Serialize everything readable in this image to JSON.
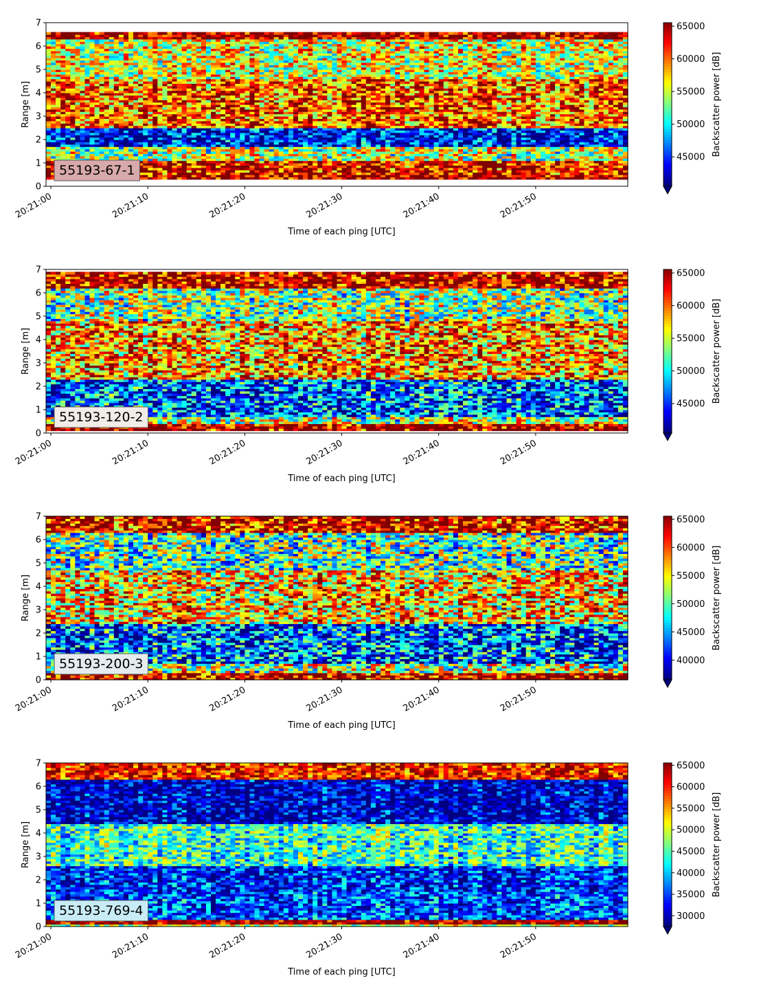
{
  "chart_data": [
    {
      "type": "heatmap",
      "label": "55193-67-1",
      "xlabel": "Time of each ping [UTC]",
      "ylabel": "Range [m]",
      "xticks": [
        "20:21:00",
        "20:21:10",
        "20:21:20",
        "20:21:30",
        "20:21:40",
        "20:21:50"
      ],
      "xlim_seconds": [
        -0.5,
        59.5
      ],
      "yticks": [
        "0",
        "1",
        "2",
        "3",
        "4",
        "5",
        "6",
        "7"
      ],
      "ylim": [
        0,
        7
      ],
      "colorbar_label": "Backscatter power [dB]",
      "colorbar_ticks": [
        "45000",
        "50000",
        "55000",
        "60000",
        "65000"
      ],
      "clim": [
        40500,
        65535
      ],
      "colormap": "jet",
      "colorbar_extend": "min",
      "label_box_color": "#d8a9aa",
      "profile": {
        "clip": [
          0.28,
          6.55
        ],
        "bands": [
          {
            "range": [
              0.28,
              0.55
            ],
            "level": 0.97
          },
          {
            "range": [
              0.55,
              1.1
            ],
            "level": 0.88
          },
          {
            "range": [
              1.1,
              1.7
            ],
            "level": 0.55
          },
          {
            "range": [
              1.7,
              2.5
            ],
            "level": 0.12
          },
          {
            "range": [
              2.5,
              4.6
            ],
            "level": 0.78
          },
          {
            "range": [
              4.6,
              6.3
            ],
            "level": 0.6
          },
          {
            "range": [
              6.3,
              7.0
            ],
            "level": 0.97
          }
        ],
        "noise": 0.28
      }
    },
    {
      "type": "heatmap",
      "label": "55193-120-2",
      "xlabel": "Time of each ping [UTC]",
      "ylabel": "Range [m]",
      "xticks": [
        "20:21:00",
        "20:21:10",
        "20:21:20",
        "20:21:30",
        "20:21:40",
        "20:21:50"
      ],
      "xlim_seconds": [
        -0.5,
        59.5
      ],
      "yticks": [
        "0",
        "1",
        "2",
        "3",
        "4",
        "5",
        "6",
        "7"
      ],
      "ylim": [
        0,
        7
      ],
      "colorbar_label": "Backscatter power [dB]",
      "colorbar_ticks": [
        "45000",
        "50000",
        "55000",
        "60000",
        "65000"
      ],
      "clim": [
        40500,
        65535
      ],
      "colormap": "jet",
      "colorbar_extend": "min",
      "label_box_color": "#f2ece8",
      "profile": {
        "clip": [
          0.12,
          6.9
        ],
        "bands": [
          {
            "range": [
              0.12,
              0.4
            ],
            "level": 0.97
          },
          {
            "range": [
              0.4,
              0.7
            ],
            "level": 0.55
          },
          {
            "range": [
              0.7,
              2.3
            ],
            "level": 0.22
          },
          {
            "range": [
              2.3,
              4.8
            ],
            "level": 0.72
          },
          {
            "range": [
              4.8,
              6.2
            ],
            "level": 0.5
          },
          {
            "range": [
              6.2,
              7.0
            ],
            "level": 0.95
          }
        ],
        "noise": 0.32
      }
    },
    {
      "type": "heatmap",
      "label": "55193-200-3",
      "xlabel": "Time of each ping [UTC]",
      "ylabel": "Range [m]",
      "xticks": [
        "20:21:00",
        "20:21:10",
        "20:21:20",
        "20:21:30",
        "20:21:40",
        "20:21:50"
      ],
      "xlim_seconds": [
        -0.5,
        59.5
      ],
      "yticks": [
        "0",
        "1",
        "2",
        "3",
        "4",
        "5",
        "6",
        "7"
      ],
      "ylim": [
        0,
        7
      ],
      "colorbar_label": "Backscatter power [dB]",
      "colorbar_ticks": [
        "40000",
        "45000",
        "50000",
        "55000",
        "60000",
        "65000"
      ],
      "clim": [
        36500,
        65535
      ],
      "colormap": "jet",
      "colorbar_extend": "min",
      "label_box_color": "#e4ecef",
      "profile": {
        "clip": [
          0.0,
          7.0
        ],
        "bands": [
          {
            "range": [
              0.0,
              0.3
            ],
            "level": 0.97
          },
          {
            "range": [
              0.3,
              0.7
            ],
            "level": 0.55
          },
          {
            "range": [
              0.7,
              2.4
            ],
            "level": 0.22
          },
          {
            "range": [
              2.4,
              4.7
            ],
            "level": 0.66
          },
          {
            "range": [
              4.7,
              6.3
            ],
            "level": 0.45
          },
          {
            "range": [
              6.3,
              7.0
            ],
            "level": 0.92
          }
        ],
        "noise": 0.34
      }
    },
    {
      "type": "heatmap",
      "label": "55193-769-4",
      "xlabel": "Time of each ping [UTC]",
      "ylabel": "Range [m]",
      "xticks": [
        "20:21:00",
        "20:21:10",
        "20:21:20",
        "20:21:30",
        "20:21:40",
        "20:21:50"
      ],
      "xlim_seconds": [
        -0.5,
        59.5
      ],
      "yticks": [
        "0",
        "1",
        "2",
        "3",
        "4",
        "5",
        "6",
        "7"
      ],
      "ylim": [
        0,
        7
      ],
      "colorbar_label": "Backscatter power [dB]",
      "colorbar_ticks": [
        "30000",
        "35000",
        "40000",
        "45000",
        "50000",
        "55000",
        "60000",
        "65000"
      ],
      "clim": [
        27500,
        65535
      ],
      "colormap": "jet",
      "colorbar_extend": "min",
      "label_box_color": "#c8ecf6",
      "profile": {
        "clip": [
          0.0,
          7.0
        ],
        "bands": [
          {
            "range": [
              0.0,
              0.12
            ],
            "level": 0.55
          },
          {
            "range": [
              0.12,
              0.3
            ],
            "level": 0.97
          },
          {
            "range": [
              0.3,
              1.5
            ],
            "level": 0.2
          },
          {
            "range": [
              1.5,
              2.6
            ],
            "level": 0.15
          },
          {
            "range": [
              2.6,
              4.4
            ],
            "level": 0.42
          },
          {
            "range": [
              4.4,
              6.3
            ],
            "level": 0.06
          },
          {
            "range": [
              6.3,
              7.0
            ],
            "level": 0.85
          }
        ],
        "noise": 0.22
      }
    }
  ]
}
